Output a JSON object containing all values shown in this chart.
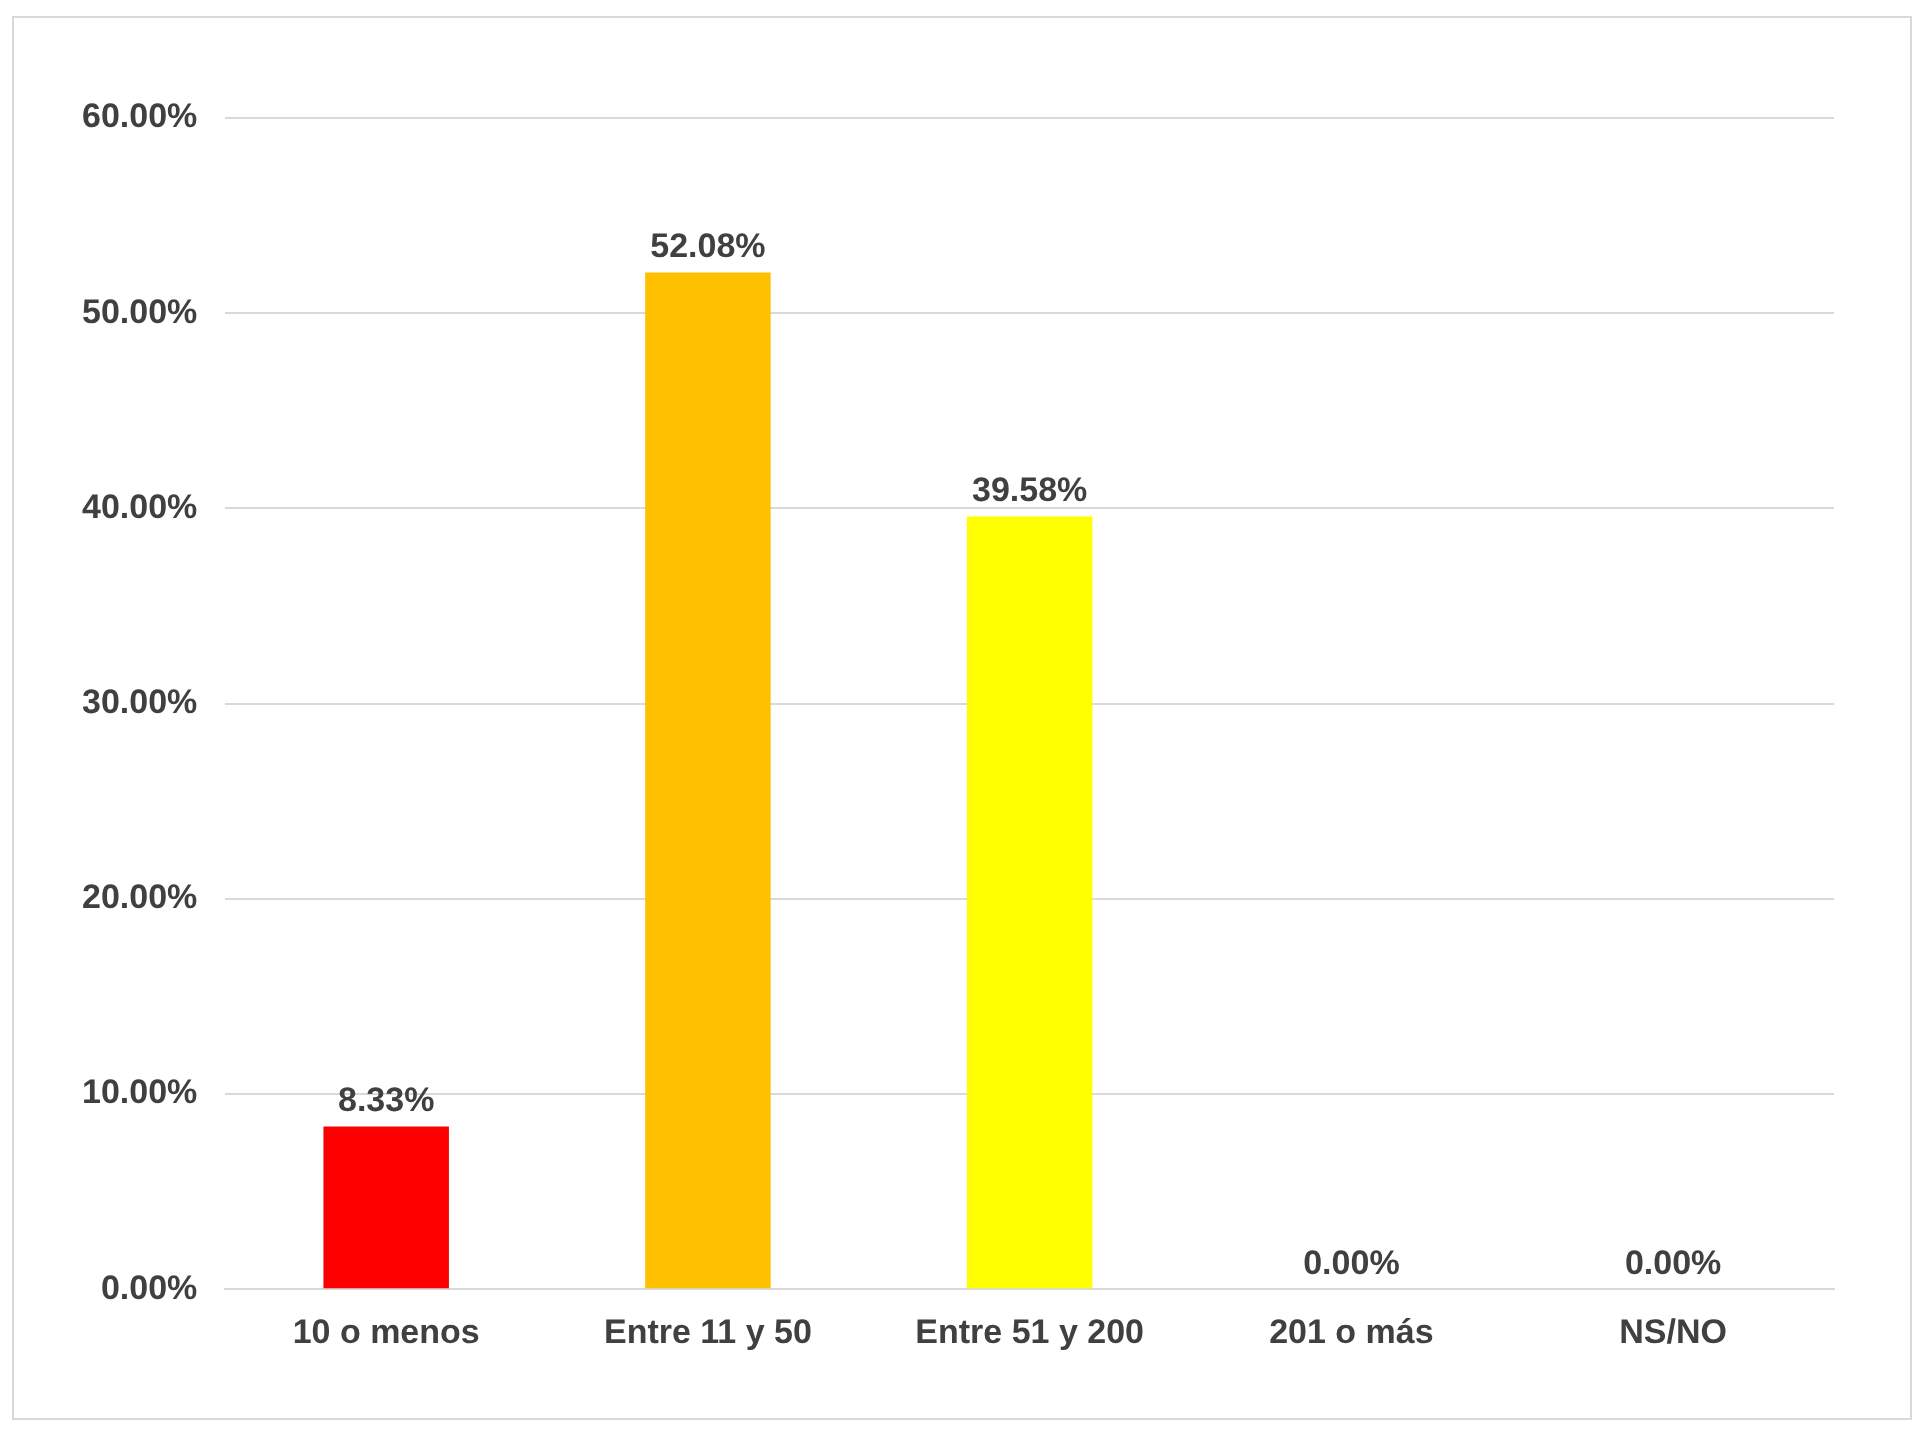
{
  "chart_data": {
    "type": "bar",
    "categories": [
      "10 o menos",
      "Entre 11 y 50",
      "Entre 51 y 200",
      "201 o más",
      "NS/NO"
    ],
    "values": [
      8.33,
      52.08,
      39.58,
      0,
      0
    ],
    "colors": [
      "#ff0000",
      "#ffc000",
      "#ffff00",
      "#70ad47",
      "#00a04a"
    ],
    "value_labels": [
      "8.33%",
      "52.08%",
      "39.58%",
      "0.00%",
      "0.00%"
    ],
    "ylim": [
      0,
      60
    ],
    "yticks": [
      {
        "value": 0,
        "label": "0.00%"
      },
      {
        "value": 10,
        "label": "10.00%"
      },
      {
        "value": 20,
        "label": "20.00%"
      },
      {
        "value": 30,
        "label": "30.00%"
      },
      {
        "value": 40,
        "label": "40.00%"
      },
      {
        "value": 50,
        "label": "50.00%"
      },
      {
        "value": 60,
        "label": "60.00%"
      }
    ],
    "grid": "y"
  }
}
